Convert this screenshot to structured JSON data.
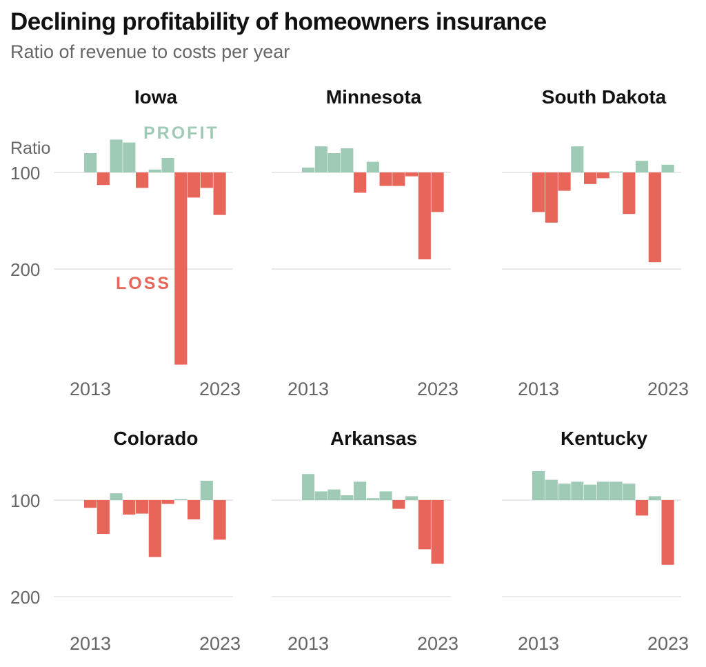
{
  "chart_data": {
    "type": "bar",
    "title": "Declining profitability of homeowners insurance",
    "subtitle": "Ratio of revenue to costs per year",
    "ylabel": "Ratio",
    "baseline": 100,
    "y_ticks": [
      "100",
      "200"
    ],
    "x_tick_labels": [
      "2013",
      "2023"
    ],
    "years": [
      2013,
      2014,
      2015,
      2016,
      2017,
      2018,
      2019,
      2020,
      2021,
      2022,
      2023
    ],
    "annotations": {
      "profit": "PROFIT",
      "loss": "LOSS"
    },
    "colors": {
      "profit": "#9fcbb6",
      "loss": "#e8655a",
      "grid": "#d6d6d6"
    },
    "panels": [
      {
        "name": "Iowa",
        "values": [
          80,
          113,
          66,
          69,
          116,
          97,
          85,
          299,
          126,
          116,
          144
        ]
      },
      {
        "name": "Minnesota",
        "values": [
          95,
          73,
          80,
          75,
          121,
          89,
          114,
          114,
          104,
          190,
          141
        ]
      },
      {
        "name": "South Dakota",
        "values": [
          141,
          152,
          119,
          73,
          112,
          106,
          99,
          143,
          88,
          193,
          92
        ]
      },
      {
        "name": "Colorado",
        "values": [
          108,
          135,
          93,
          115,
          114,
          159,
          104,
          99,
          120,
          80,
          141
        ]
      },
      {
        "name": "Arkansas",
        "values": [
          73,
          91,
          89,
          95,
          81,
          98,
          91,
          109,
          96,
          151,
          166
        ]
      },
      {
        "name": "Kentucky",
        "values": [
          70,
          79,
          83,
          81,
          84,
          81,
          81,
          83,
          116,
          96,
          167
        ]
      }
    ]
  }
}
